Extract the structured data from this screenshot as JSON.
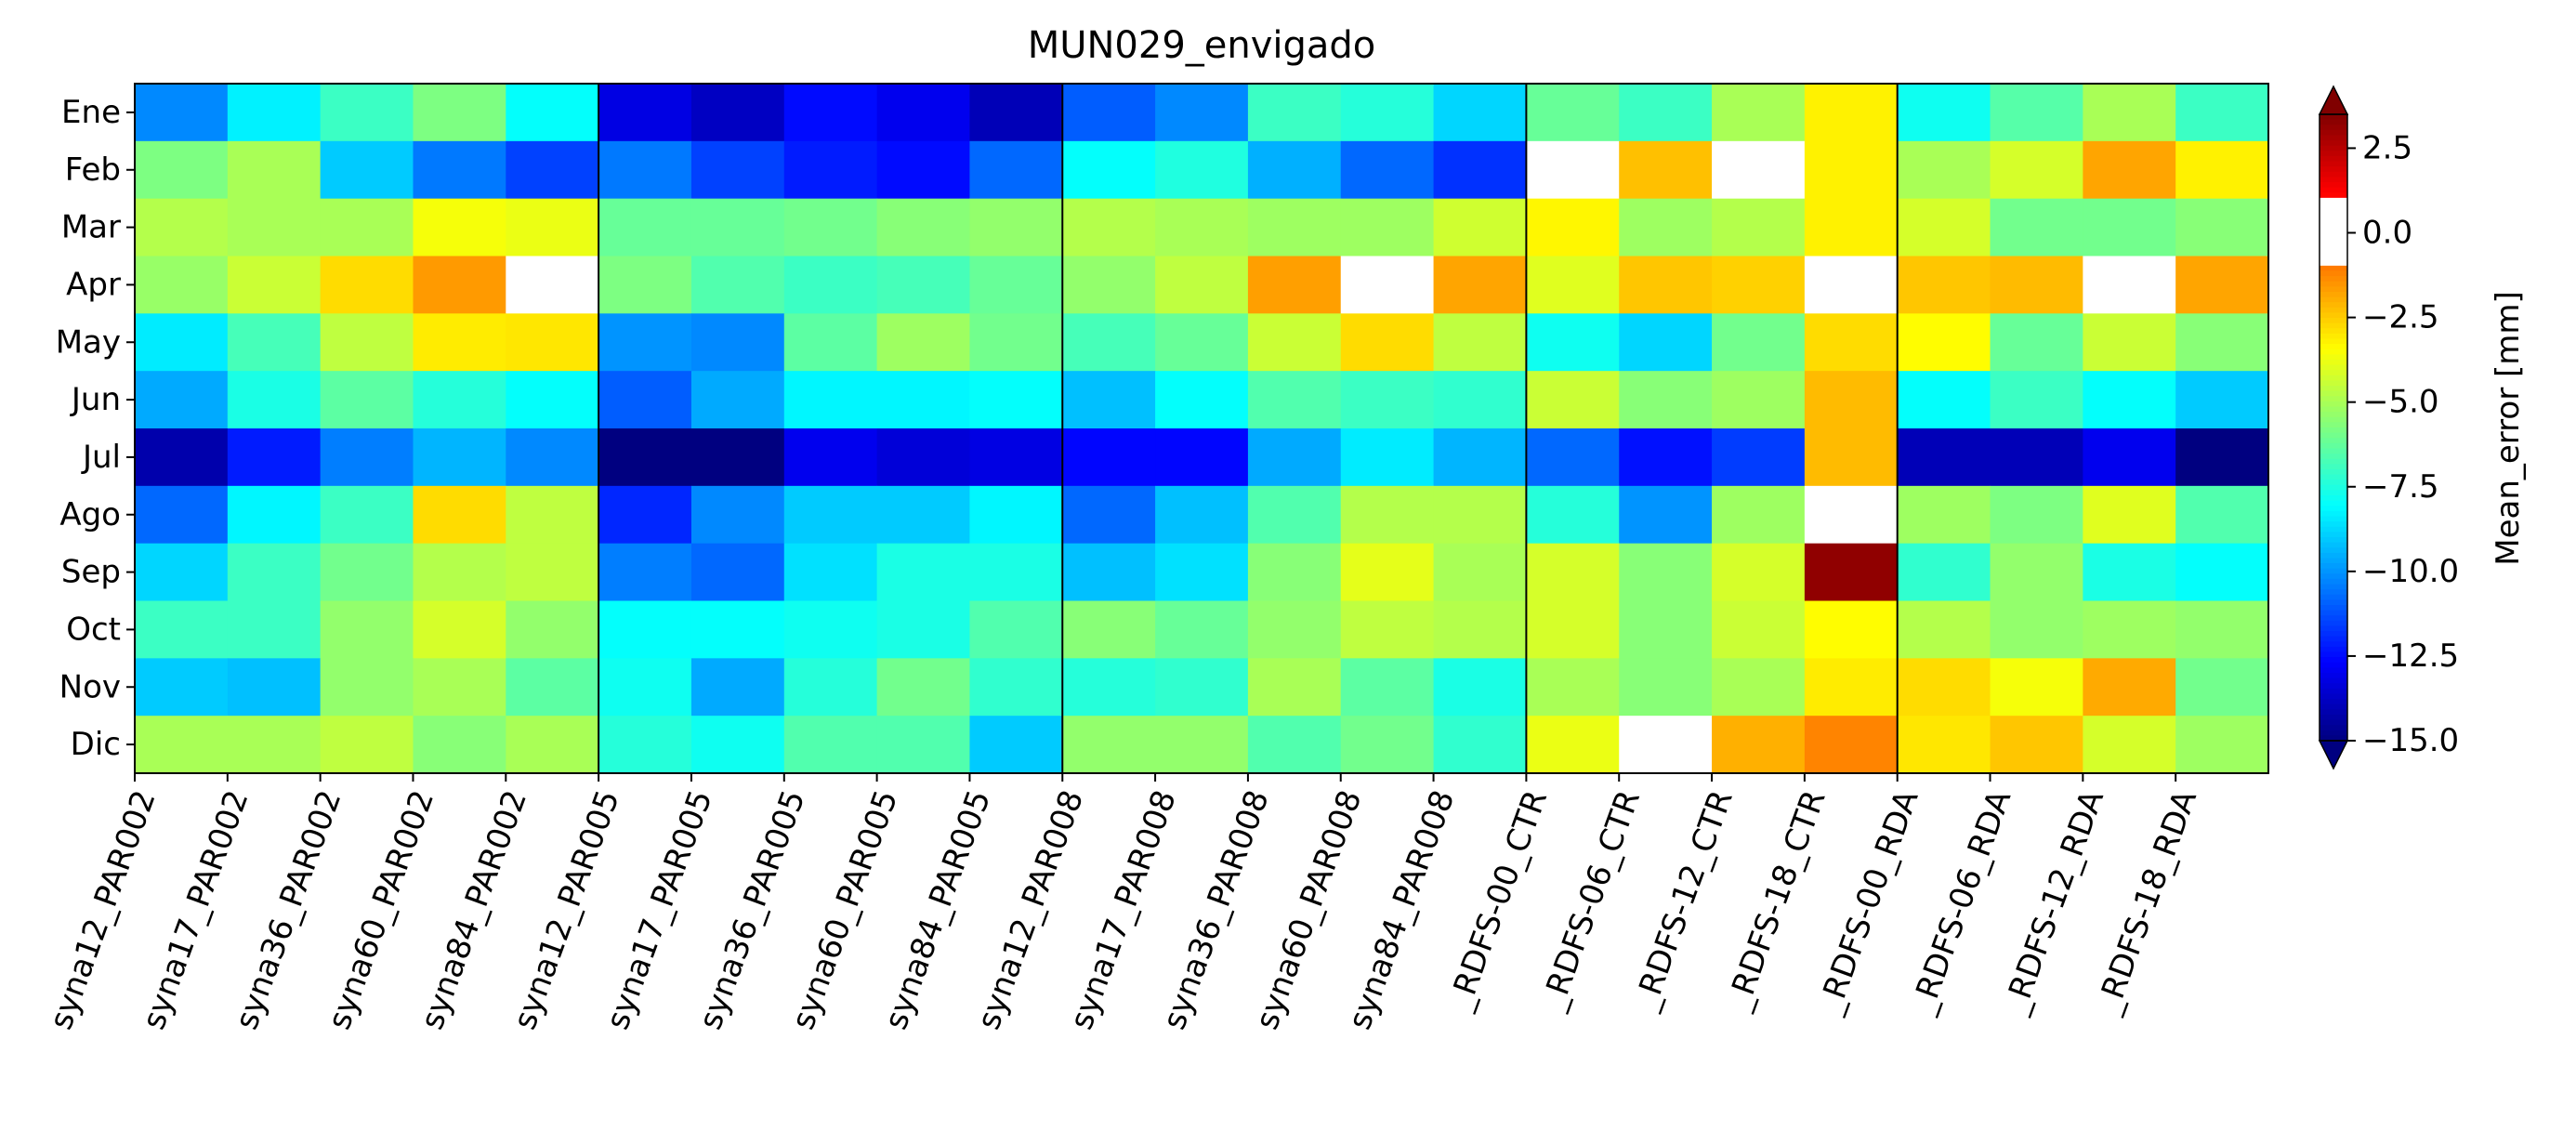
{
  "chart_data": {
    "type": "heatmap",
    "title": "MUN029_envigado",
    "xlabel": "",
    "ylabel": "",
    "categories": [
      "syna12_PAR002",
      "syna17_PAR002",
      "syna36_PAR002",
      "syna60_PAR002",
      "syna84_PAR002",
      "syna12_PAR005",
      "syna17_PAR005",
      "syna36_PAR005",
      "syna60_PAR005",
      "syna84_PAR005",
      "syna12_PAR008",
      "syna17_PAR008",
      "syna36_PAR008",
      "syna60_PAR008",
      "syna84_PAR008",
      "_RDFS-00_CTR",
      "_RDFS-06_CTR",
      "_RDFS-12_CTR",
      "_RDFS-18_CTR",
      "_RDFS-00_RDA",
      "_RDFS-06_RDA",
      "_RDFS-12_RDA",
      "_RDFS-18_RDA"
    ],
    "rows": [
      "Ene",
      "Feb",
      "Mar",
      "Apr",
      "May",
      "Jun",
      "Jul",
      "Ago",
      "Sep",
      "Oct",
      "Nov",
      "Dic"
    ],
    "values": [
      [
        -10.2,
        -8.3,
        -7.0,
        -5.8,
        -8.0,
        -13.2,
        -13.8,
        -12.5,
        -13.0,
        -14.0,
        -11.0,
        -10.2,
        -7.0,
        -7.4,
        -8.8,
        -6.2,
        -7.0,
        -5.0,
        -3.2,
        -7.8,
        -6.5,
        -5.0,
        -7.0
      ],
      [
        -5.8,
        -5.0,
        -9.0,
        -10.5,
        -11.5,
        -10.5,
        -11.5,
        -12.2,
        -12.5,
        -10.8,
        -8.0,
        -7.5,
        -9.5,
        -10.8,
        -11.8,
        0.0,
        -2.3,
        0.0,
        -3.2,
        -5.0,
        -4.2,
        -1.8,
        -3.2
      ],
      [
        -4.8,
        -5.0,
        -5.0,
        -3.6,
        -3.8,
        -6.2,
        -6.2,
        -6.0,
        -5.6,
        -5.4,
        -4.8,
        -5.0,
        -5.2,
        -5.2,
        -4.3,
        -3.3,
        -5.2,
        -4.8,
        -3.2,
        -4.2,
        -6.0,
        -6.0,
        -5.6
      ],
      [
        -5.3,
        -4.4,
        -2.8,
        -1.6,
        0.0,
        -5.8,
        -6.6,
        -7.0,
        -6.8,
        -6.2,
        -5.4,
        -4.6,
        -1.7,
        0.0,
        -1.8,
        -4.0,
        -2.4,
        -2.6,
        0.0,
        -2.4,
        -2.2,
        0.0,
        -1.8
      ],
      [
        -8.4,
        -6.8,
        -4.6,
        -3.1,
        -3.0,
        -10.0,
        -10.2,
        -6.4,
        -5.2,
        -6.0,
        -6.8,
        -6.2,
        -4.4,
        -2.8,
        -4.6,
        -7.8,
        -8.8,
        -6.0,
        -2.8,
        -3.4,
        -6.2,
        -4.4,
        -5.6
      ],
      [
        -9.6,
        -7.6,
        -6.4,
        -7.4,
        -8.0,
        -11.0,
        -9.6,
        -8.2,
        -8.2,
        -8.0,
        -9.2,
        -8.0,
        -6.6,
        -7.0,
        -7.2,
        -4.4,
        -5.6,
        -5.2,
        -2.2,
        -8.0,
        -7.0,
        -8.0,
        -9.0
      ],
      [
        -14.2,
        -12.2,
        -10.4,
        -9.4,
        -10.2,
        -15.2,
        -15.4,
        -13.0,
        -13.4,
        -13.2,
        -12.6,
        -12.6,
        -9.6,
        -8.4,
        -9.4,
        -10.8,
        -12.4,
        -11.6,
        -2.2,
        -14.0,
        -14.0,
        -13.0,
        -15.0
      ],
      [
        -10.8,
        -8.2,
        -7.0,
        -2.8,
        -4.6,
        -12.0,
        -10.2,
        -9.0,
        -9.0,
        -8.2,
        -10.8,
        -9.2,
        -6.6,
        -4.8,
        -4.8,
        -7.4,
        -10.0,
        -5.2,
        0.0,
        -5.2,
        -5.8,
        -4.0,
        -6.6
      ],
      [
        -8.8,
        -7.0,
        -6.0,
        -4.8,
        -4.6,
        -10.4,
        -10.8,
        -8.6,
        -7.6,
        -7.6,
        -9.2,
        -8.6,
        -5.6,
        -3.9,
        -5.0,
        -4.2,
        -5.6,
        -4.2,
        3.2,
        -7.2,
        -5.4,
        -7.6,
        -8.0
      ],
      [
        -7.0,
        -7.0,
        -5.4,
        -4.2,
        -5.4,
        -8.0,
        -8.0,
        -7.8,
        -7.6,
        -6.6,
        -5.6,
        -6.2,
        -5.4,
        -4.6,
        -4.8,
        -4.2,
        -5.6,
        -4.4,
        -3.4,
        -4.8,
        -5.4,
        -5.2,
        -5.4
      ],
      [
        -9.0,
        -9.2,
        -5.4,
        -5.0,
        -6.4,
        -7.8,
        -9.6,
        -7.4,
        -6.0,
        -7.2,
        -7.4,
        -7.2,
        -5.0,
        -6.4,
        -7.6,
        -5.0,
        -5.6,
        -5.0,
        -3.1,
        -2.8,
        -3.6,
        -1.9,
        -6.0
      ],
      [
        -5.0,
        -5.0,
        -4.6,
        -5.6,
        -5.0,
        -7.4,
        -7.8,
        -6.6,
        -6.6,
        -9.0,
        -5.4,
        -5.4,
        -6.6,
        -6.0,
        -7.2,
        -3.8,
        0.0,
        -2.0,
        -1.2,
        -3.0,
        -2.4,
        -4.2,
        -5.2
      ]
    ],
    "group_separators_after_column": [
      5,
      10,
      15,
      19
    ],
    "colorbar": {
      "label": "Mean_error [mm]",
      "range": [
        -15.0,
        3.5
      ],
      "ticks": [
        "2.5",
        "0.0",
        "−2.5",
        "−5.0",
        "−7.5",
        "−10.0",
        "−12.5",
        "−15.0"
      ],
      "tick_values": [
        2.5,
        0.0,
        -2.5,
        -5.0,
        -7.5,
        -10.0,
        -12.5,
        -15.0
      ],
      "white_band": [
        -1.0,
        1.0
      ],
      "extend": "both"
    }
  }
}
